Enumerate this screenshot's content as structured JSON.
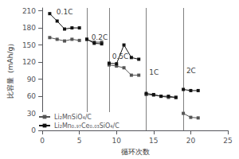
{
  "chart_data": {
    "type": "line",
    "xlabel": "循环次数",
    "ylabel": "比容量（mAh/g）",
    "xlim": [
      0,
      25
    ],
    "ylim": [
      0,
      215
    ],
    "xticks": [
      0,
      5,
      10,
      15,
      20,
      25
    ],
    "yticks": [
      0,
      30,
      60,
      90,
      120,
      150,
      180,
      210
    ],
    "grid": false,
    "legend": "lower left",
    "x": [
      [
        1,
        2,
        3,
        4,
        5
      ],
      [
        6,
        7,
        8
      ],
      [
        9,
        10,
        11,
        12,
        13
      ],
      [
        14,
        15,
        16,
        17,
        18
      ],
      [
        19,
        20,
        21
      ]
    ],
    "series": [
      {
        "name": "Li₂MnSiO₄/C",
        "color": "#555555",
        "marker": "square",
        "values": [
          [
            163,
            160,
            157,
            160,
            158
          ],
          [
            160,
            155,
            155
          ],
          [
            115,
            113,
            110,
            97,
            97
          ],
          [
            63,
            62,
            60,
            58,
            58
          ],
          [
            30,
            23,
            22
          ]
        ]
      },
      {
        "name": "Li₂Mn₀.₉₇Ce₀.₀₃SiO₄/C",
        "color": "#111111",
        "marker": "square",
        "values": [
          [
            205,
            192,
            178,
            180,
            180
          ],
          [
            160,
            153,
            152
          ],
          [
            118,
            117,
            150,
            128,
            125
          ],
          [
            65,
            63,
            60,
            60,
            58
          ],
          [
            72,
            70,
            70
          ]
        ]
      }
    ],
    "vlines": [
      6,
      9,
      14,
      19
    ],
    "annotations": [
      {
        "text": "0.1C",
        "x": 1.8,
        "y": 208
      },
      {
        "text": "0.2C",
        "x": 6.5,
        "y": 163
      },
      {
        "text": "0.5C",
        "x": 9.3,
        "y": 130
      },
      {
        "text": "1C",
        "x": 14.3,
        "y": 102
      },
      {
        "text": "2C",
        "x": 19.3,
        "y": 105
      }
    ]
  }
}
